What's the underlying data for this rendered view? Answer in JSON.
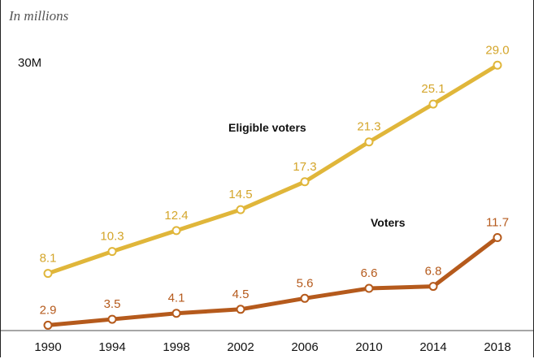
{
  "chart_data": {
    "type": "line",
    "subtitle": "In millions",
    "y_tick_label": "30M",
    "x": [
      "1990",
      "1994",
      "1998",
      "2002",
      "2006",
      "2010",
      "2014",
      "2018"
    ],
    "ylim": [
      0,
      30
    ],
    "grid": false,
    "series": [
      {
        "name": "Eligible voters",
        "color": "#e0b63a",
        "label_color": "#d4a52a",
        "values": [
          8.1,
          10.3,
          12.4,
          14.5,
          17.3,
          21.3,
          25.1,
          29.0
        ],
        "value_labels": [
          "8.1",
          "10.3",
          "12.4",
          "14.5",
          "17.3",
          "21.3",
          "25.1",
          "29.0"
        ]
      },
      {
        "name": "Voters",
        "color": "#b55a1c",
        "label_color": "#b55a1c",
        "values": [
          2.9,
          3.5,
          4.1,
          4.5,
          5.6,
          6.6,
          6.8,
          11.7
        ],
        "value_labels": [
          "2.9",
          "3.5",
          "4.1",
          "4.5",
          "5.6",
          "6.6",
          "6.8",
          "11.7"
        ]
      }
    ]
  }
}
